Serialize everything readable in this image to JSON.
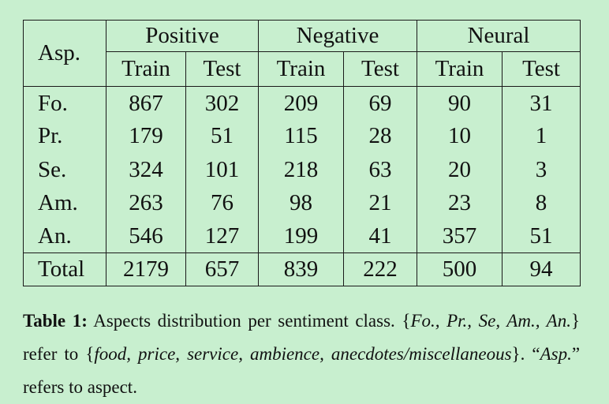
{
  "table": {
    "asp_header": "Asp.",
    "groups": [
      "Positive",
      "Negative",
      "Neural"
    ],
    "subheaders": [
      "Train",
      "Test",
      "Train",
      "Test",
      "Train",
      "Test"
    ],
    "rows": [
      {
        "label": "Fo.",
        "values": [
          "867",
          "302",
          "209",
          "69",
          "90",
          "31"
        ]
      },
      {
        "label": "Pr.",
        "values": [
          "179",
          "51",
          "115",
          "28",
          "10",
          "1"
        ]
      },
      {
        "label": "Se.",
        "values": [
          "324",
          "101",
          "218",
          "63",
          "20",
          "3"
        ]
      },
      {
        "label": "Am.",
        "values": [
          "263",
          "76",
          "98",
          "21",
          "23",
          "8"
        ]
      },
      {
        "label": "An.",
        "values": [
          "546",
          "127",
          "199",
          "41",
          "357",
          "51"
        ]
      }
    ],
    "total": {
      "label": "Total",
      "values": [
        "2179",
        "657",
        "839",
        "222",
        "500",
        "94"
      ]
    }
  },
  "caption": {
    "label": "Table 1:",
    "t1": " Aspects distribution per sentiment class. {",
    "i1": "Fo., Pr., Se, Am., An.",
    "t2": "} refer to {",
    "i2": "food, price, service, ambience, anecdotes/miscellaneous",
    "t3": "}. “",
    "i3": "Asp.",
    "t4": "” refers to aspect."
  }
}
